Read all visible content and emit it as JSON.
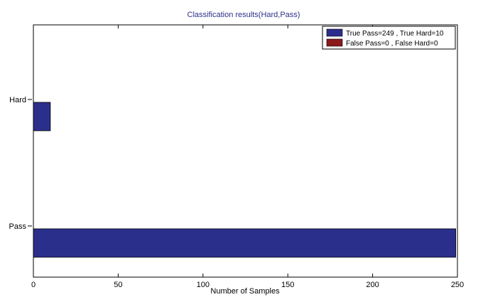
{
  "chart_data": {
    "type": "bar",
    "orientation": "horizontal",
    "title": "Classification results(Hard,Pass)",
    "xlabel": "Number of Samples",
    "ylabel": "",
    "categories": [
      "Pass",
      "Hard"
    ],
    "xlim": [
      0,
      250
    ],
    "xticks": [
      0,
      50,
      100,
      150,
      200,
      250
    ],
    "grid": false,
    "legend_position": "top-right",
    "series": [
      {
        "name": "True Pass=249 , True Hard=10",
        "values": [
          249,
          10
        ],
        "color": "#2b2f8c"
      },
      {
        "name": "False Pass=0 , False Hard=0",
        "values": [
          0,
          0
        ],
        "color": "#8b1a1a"
      }
    ],
    "title_color": "#2b2f8c"
  }
}
